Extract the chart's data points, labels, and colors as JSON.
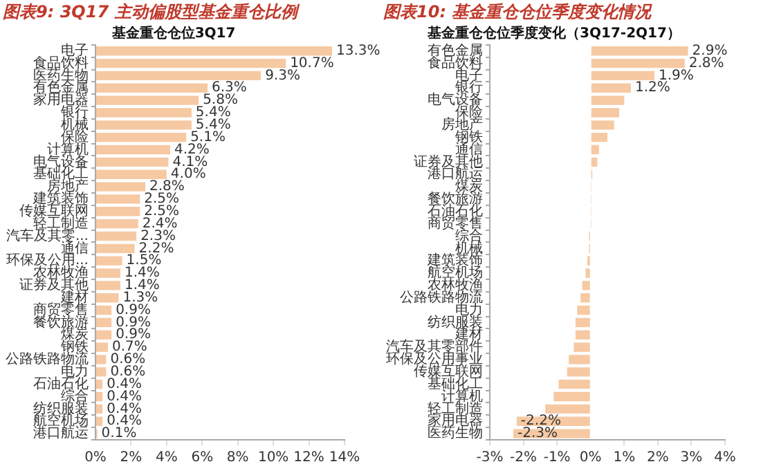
{
  "chart_data": [
    {
      "type": "bar",
      "orientation": "horizontal",
      "title": "图表9: 3Q17 主动偏股型基金重仓比例",
      "subtitle": "基金重仓仓位3Q17",
      "categories": [
        "电子",
        "食品饮料",
        "医药生物",
        "有色金属",
        "家用电器",
        "银行",
        "机械",
        "保险",
        "计算机",
        "电气设备",
        "基础化工",
        "房地产",
        "建筑装饰",
        "传媒互联网",
        "轻工制造",
        "汽车及其零...",
        "通信",
        "环保及公用...",
        "农林牧渔",
        "证券及其他",
        "建材",
        "商贸零售",
        "餐饮旅游",
        "煤炭",
        "钢铁",
        "公路铁路物流",
        "电力",
        "石油石化",
        "综合",
        "纺织服装",
        "航空机场",
        "港口航运"
      ],
      "values": [
        13.3,
        10.7,
        9.3,
        6.3,
        5.8,
        5.4,
        5.4,
        5.1,
        4.2,
        4.1,
        4.0,
        2.8,
        2.5,
        2.5,
        2.4,
        2.3,
        2.2,
        1.5,
        1.4,
        1.4,
        1.3,
        0.9,
        0.9,
        0.9,
        0.7,
        0.6,
        0.6,
        0.4,
        0.4,
        0.4,
        0.4,
        0.1
      ],
      "value_labels": [
        "13.3%",
        "10.7%",
        "9.3%",
        "6.3%",
        "5.8%",
        "5.4%",
        "5.4%",
        "5.1%",
        "4.2%",
        "4.1%",
        "4.0%",
        "2.8%",
        "2.5%",
        "2.5%",
        "2.4%",
        "2.3%",
        "2.2%",
        "1.5%",
        "1.4%",
        "1.4%",
        "1.3%",
        "0.9%",
        "0.9%",
        "0.9%",
        "0.7%",
        "0.6%",
        "0.6%",
        "0.4%",
        "0.4%",
        "0.4%",
        "0.4%",
        "0.1%"
      ],
      "color": "#f6c9a3",
      "xlim": [
        0,
        14
      ],
      "xticks": [
        {
          "value": 0,
          "label": "0%"
        },
        {
          "value": 2,
          "label": "2%"
        },
        {
          "value": 4,
          "label": "4%"
        },
        {
          "value": 6,
          "label": "6%"
        },
        {
          "value": 8,
          "label": "8%"
        },
        {
          "value": 10,
          "label": "10%"
        },
        {
          "value": 12,
          "label": "12%"
        },
        {
          "value": 14,
          "label": "14%"
        }
      ],
      "grid": false,
      "legend": false
    },
    {
      "type": "bar",
      "orientation": "horizontal",
      "title": "图表10: 基金重仓仓位季度变化情况",
      "subtitle": "基金重仓仓位季度变化（3Q17-2Q17）",
      "categories": [
        "有色金属",
        "食品饮料",
        "电子",
        "银行",
        "电气设备",
        "保险",
        "房地产",
        "钢铁",
        "通信",
        "证券及其他",
        "港口航运",
        "煤炭",
        "餐饮旅游",
        "石油石化",
        "商贸零售",
        "综合",
        "机械",
        "建筑装饰",
        "航空机场",
        "农林牧渔",
        "公路铁路物流",
        "电力",
        "纺织服装",
        "建材",
        "汽车及其零部件",
        "环保及公用事业",
        "传媒互联网",
        "基础化工",
        "计算机",
        "轻工制造",
        "家用电器",
        "医药生物"
      ],
      "values": [
        2.9,
        2.8,
        1.9,
        1.2,
        1.0,
        0.85,
        0.7,
        0.5,
        0.25,
        0.2,
        0.05,
        0.01,
        0.01,
        0.01,
        0.01,
        -0.05,
        -0.05,
        -0.1,
        -0.15,
        -0.25,
        -0.3,
        -0.4,
        -0.45,
        -0.45,
        -0.5,
        -0.65,
        -0.7,
        -0.95,
        -1.1,
        -1.35,
        -2.2,
        -2.3
      ],
      "value_labels": [
        "2.9%",
        "2.8%",
        "1.9%",
        "1.2%",
        null,
        null,
        null,
        null,
        null,
        null,
        null,
        null,
        null,
        null,
        null,
        null,
        null,
        null,
        null,
        null,
        null,
        null,
        null,
        null,
        null,
        null,
        null,
        null,
        null,
        null,
        "-2.2%",
        "-2.3%"
      ],
      "color": "#f6c9a3",
      "xlim": [
        -3,
        4
      ],
      "xticks": [
        {
          "value": -3,
          "label": "-3%"
        },
        {
          "value": -2,
          "label": "-2%"
        },
        {
          "value": -1,
          "label": "-1%"
        },
        {
          "value": 0,
          "label": "0%"
        },
        {
          "value": 1,
          "label": "1%"
        },
        {
          "value": 2,
          "label": "2%"
        },
        {
          "value": 3,
          "label": "3%"
        },
        {
          "value": 4,
          "label": "4%"
        }
      ],
      "grid": false,
      "legend": false
    }
  ]
}
